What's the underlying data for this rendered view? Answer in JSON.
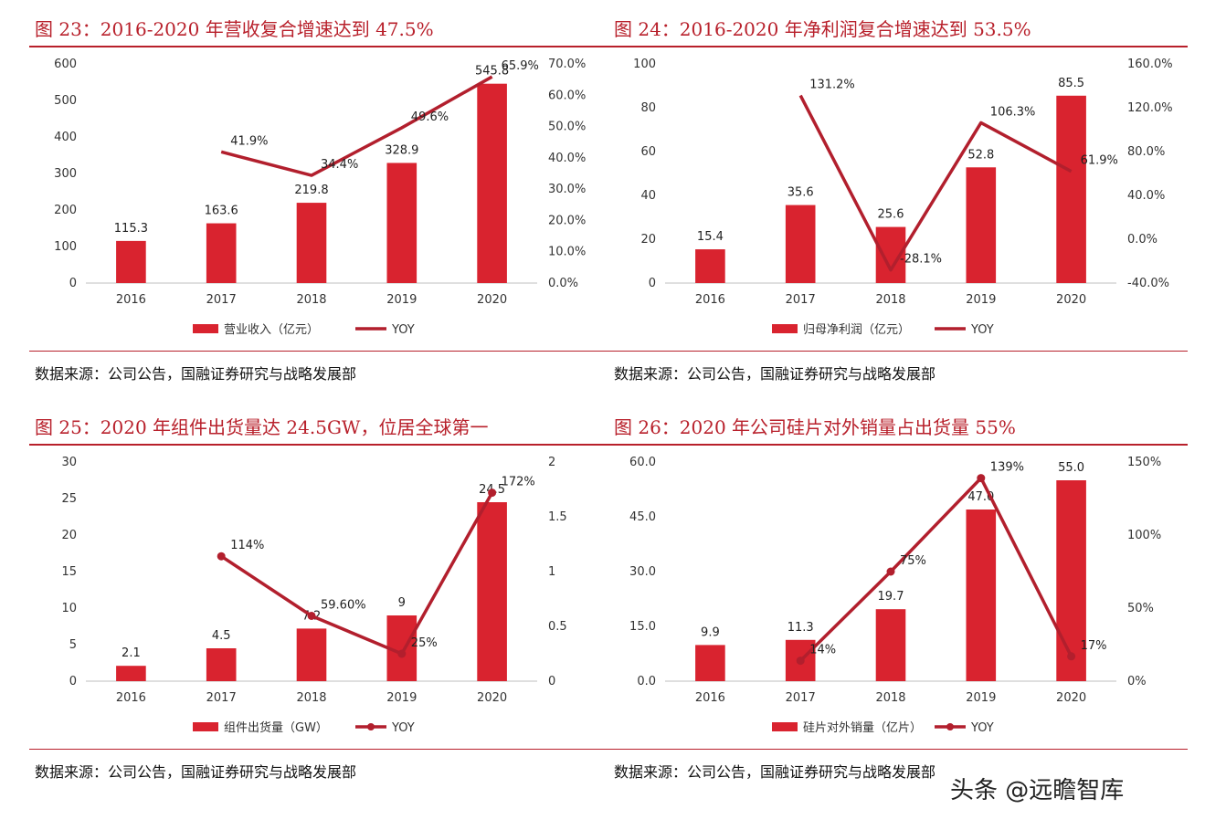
{
  "page": {
    "watermark": "头条 @远瞻智库"
  },
  "colors": {
    "bar": "#d9232f",
    "line": "#b21f2d",
    "accent": "#b8202b"
  },
  "panels": [
    {
      "title": "图 23：2016-2020 年营收复合增速达到 47.5%",
      "source": "数据来源：公司公告，国融证券研究与战略发展部",
      "chart_data": {
        "type": "bar",
        "categories": [
          "2016",
          "2017",
          "2018",
          "2019",
          "2020"
        ],
        "series": [
          {
            "name": "营业收入（亿元）",
            "type": "bar",
            "axis": "left",
            "values": [
              115.3,
              163.6,
              219.8,
              328.9,
              545.8
            ],
            "labels": [
              "115.3",
              "163.6",
              "219.8",
              "328.9",
              "545.8"
            ]
          },
          {
            "name": "YOY",
            "type": "line",
            "axis": "right",
            "values": [
              null,
              41.9,
              34.4,
              49.6,
              65.9
            ],
            "labels": [
              "",
              "41.9%",
              "34.4%",
              "49.6%",
              "65.9%"
            ]
          }
        ],
        "ylim_left": [
          0,
          600
        ],
        "yticks_left": [
          "0",
          "100",
          "200",
          "300",
          "400",
          "500",
          "600"
        ],
        "ylim_right": [
          0,
          70
        ],
        "yticks_right": [
          "0.0%",
          "10.0%",
          "20.0%",
          "30.0%",
          "40.0%",
          "50.0%",
          "60.0%",
          "70.0%"
        ],
        "line_markers": false,
        "legend": "bottom"
      }
    },
    {
      "title": "图 24：2016-2020 年净利润复合增速达到 53.5%",
      "source": "数据来源：公司公告，国融证券研究与战略发展部",
      "chart_data": {
        "type": "bar",
        "categories": [
          "2016",
          "2017",
          "2018",
          "2019",
          "2020"
        ],
        "series": [
          {
            "name": "归母净利润（亿元）",
            "type": "bar",
            "axis": "left",
            "values": [
              15.4,
              35.6,
              25.6,
              52.8,
              85.5
            ],
            "labels": [
              "15.4",
              "35.6",
              "25.6",
              "52.8",
              "85.5"
            ]
          },
          {
            "name": "YOY",
            "type": "line",
            "axis": "right",
            "values": [
              null,
              131.2,
              -28.1,
              106.3,
              61.9
            ],
            "labels": [
              "",
              "131.2%",
              "-28.1%",
              "106.3%",
              "61.9%"
            ]
          }
        ],
        "ylim_left": [
          0,
          100
        ],
        "yticks_left": [
          "0",
          "20",
          "40",
          "60",
          "80",
          "100"
        ],
        "ylim_right": [
          -40,
          160
        ],
        "yticks_right": [
          "-40.0%",
          "0.0%",
          "40.0%",
          "80.0%",
          "120.0%",
          "160.0%"
        ],
        "line_markers": false,
        "legend": "bottom"
      }
    },
    {
      "title": "图 25：2020 年组件出货量达 24.5GW，位居全球第一",
      "source": "数据来源：公司公告，国融证券研究与战略发展部",
      "chart_data": {
        "type": "bar",
        "categories": [
          "2016",
          "2017",
          "2018",
          "2019",
          "2020"
        ],
        "series": [
          {
            "name": "组件出货量（GW）",
            "type": "bar",
            "axis": "left",
            "values": [
              2.1,
              4.5,
              7.2,
              9,
              24.5
            ],
            "labels": [
              "2.1",
              "4.5",
              "7.2",
              "9",
              "24.5"
            ]
          },
          {
            "name": "YOY",
            "type": "line",
            "axis": "right",
            "values": [
              null,
              1.14,
              0.596,
              0.25,
              1.72
            ],
            "labels": [
              "",
              "114%",
              "59.60%",
              "25%",
              "172%"
            ]
          }
        ],
        "ylim_left": [
          0,
          30
        ],
        "yticks_left": [
          "0",
          "5",
          "10",
          "15",
          "20",
          "25",
          "30"
        ],
        "ylim_right": [
          0,
          2
        ],
        "yticks_right": [
          "0",
          "0.5",
          "1",
          "1.5",
          "2"
        ],
        "line_markers": true,
        "legend": "bottom"
      }
    },
    {
      "title": "图 26：2020 年公司硅片对外销量占出货量 55%",
      "source": "数据来源：公司公告，国融证券研究与战略发展部",
      "chart_data": {
        "type": "bar",
        "categories": [
          "2016",
          "2017",
          "2018",
          "2019",
          "2020"
        ],
        "series": [
          {
            "name": "硅片对外销量（亿片）",
            "type": "bar",
            "axis": "left",
            "values": [
              9.9,
              11.3,
              19.7,
              47.0,
              55.0
            ],
            "labels": [
              "9.9",
              "11.3",
              "19.7",
              "47.0",
              "55.0"
            ]
          },
          {
            "name": "YOY",
            "type": "line",
            "axis": "right",
            "values": [
              null,
              14,
              75,
              139,
              17
            ],
            "labels": [
              "",
              "14%",
              "75%",
              "139%",
              "17%"
            ]
          }
        ],
        "ylim_left": [
          0,
          60
        ],
        "yticks_left": [
          "0.0",
          "15.0",
          "30.0",
          "45.0",
          "60.0"
        ],
        "ylim_right": [
          0,
          150
        ],
        "yticks_right": [
          "0%",
          "50%",
          "100%",
          "150%"
        ],
        "line_markers": true,
        "legend": "bottom"
      }
    }
  ]
}
